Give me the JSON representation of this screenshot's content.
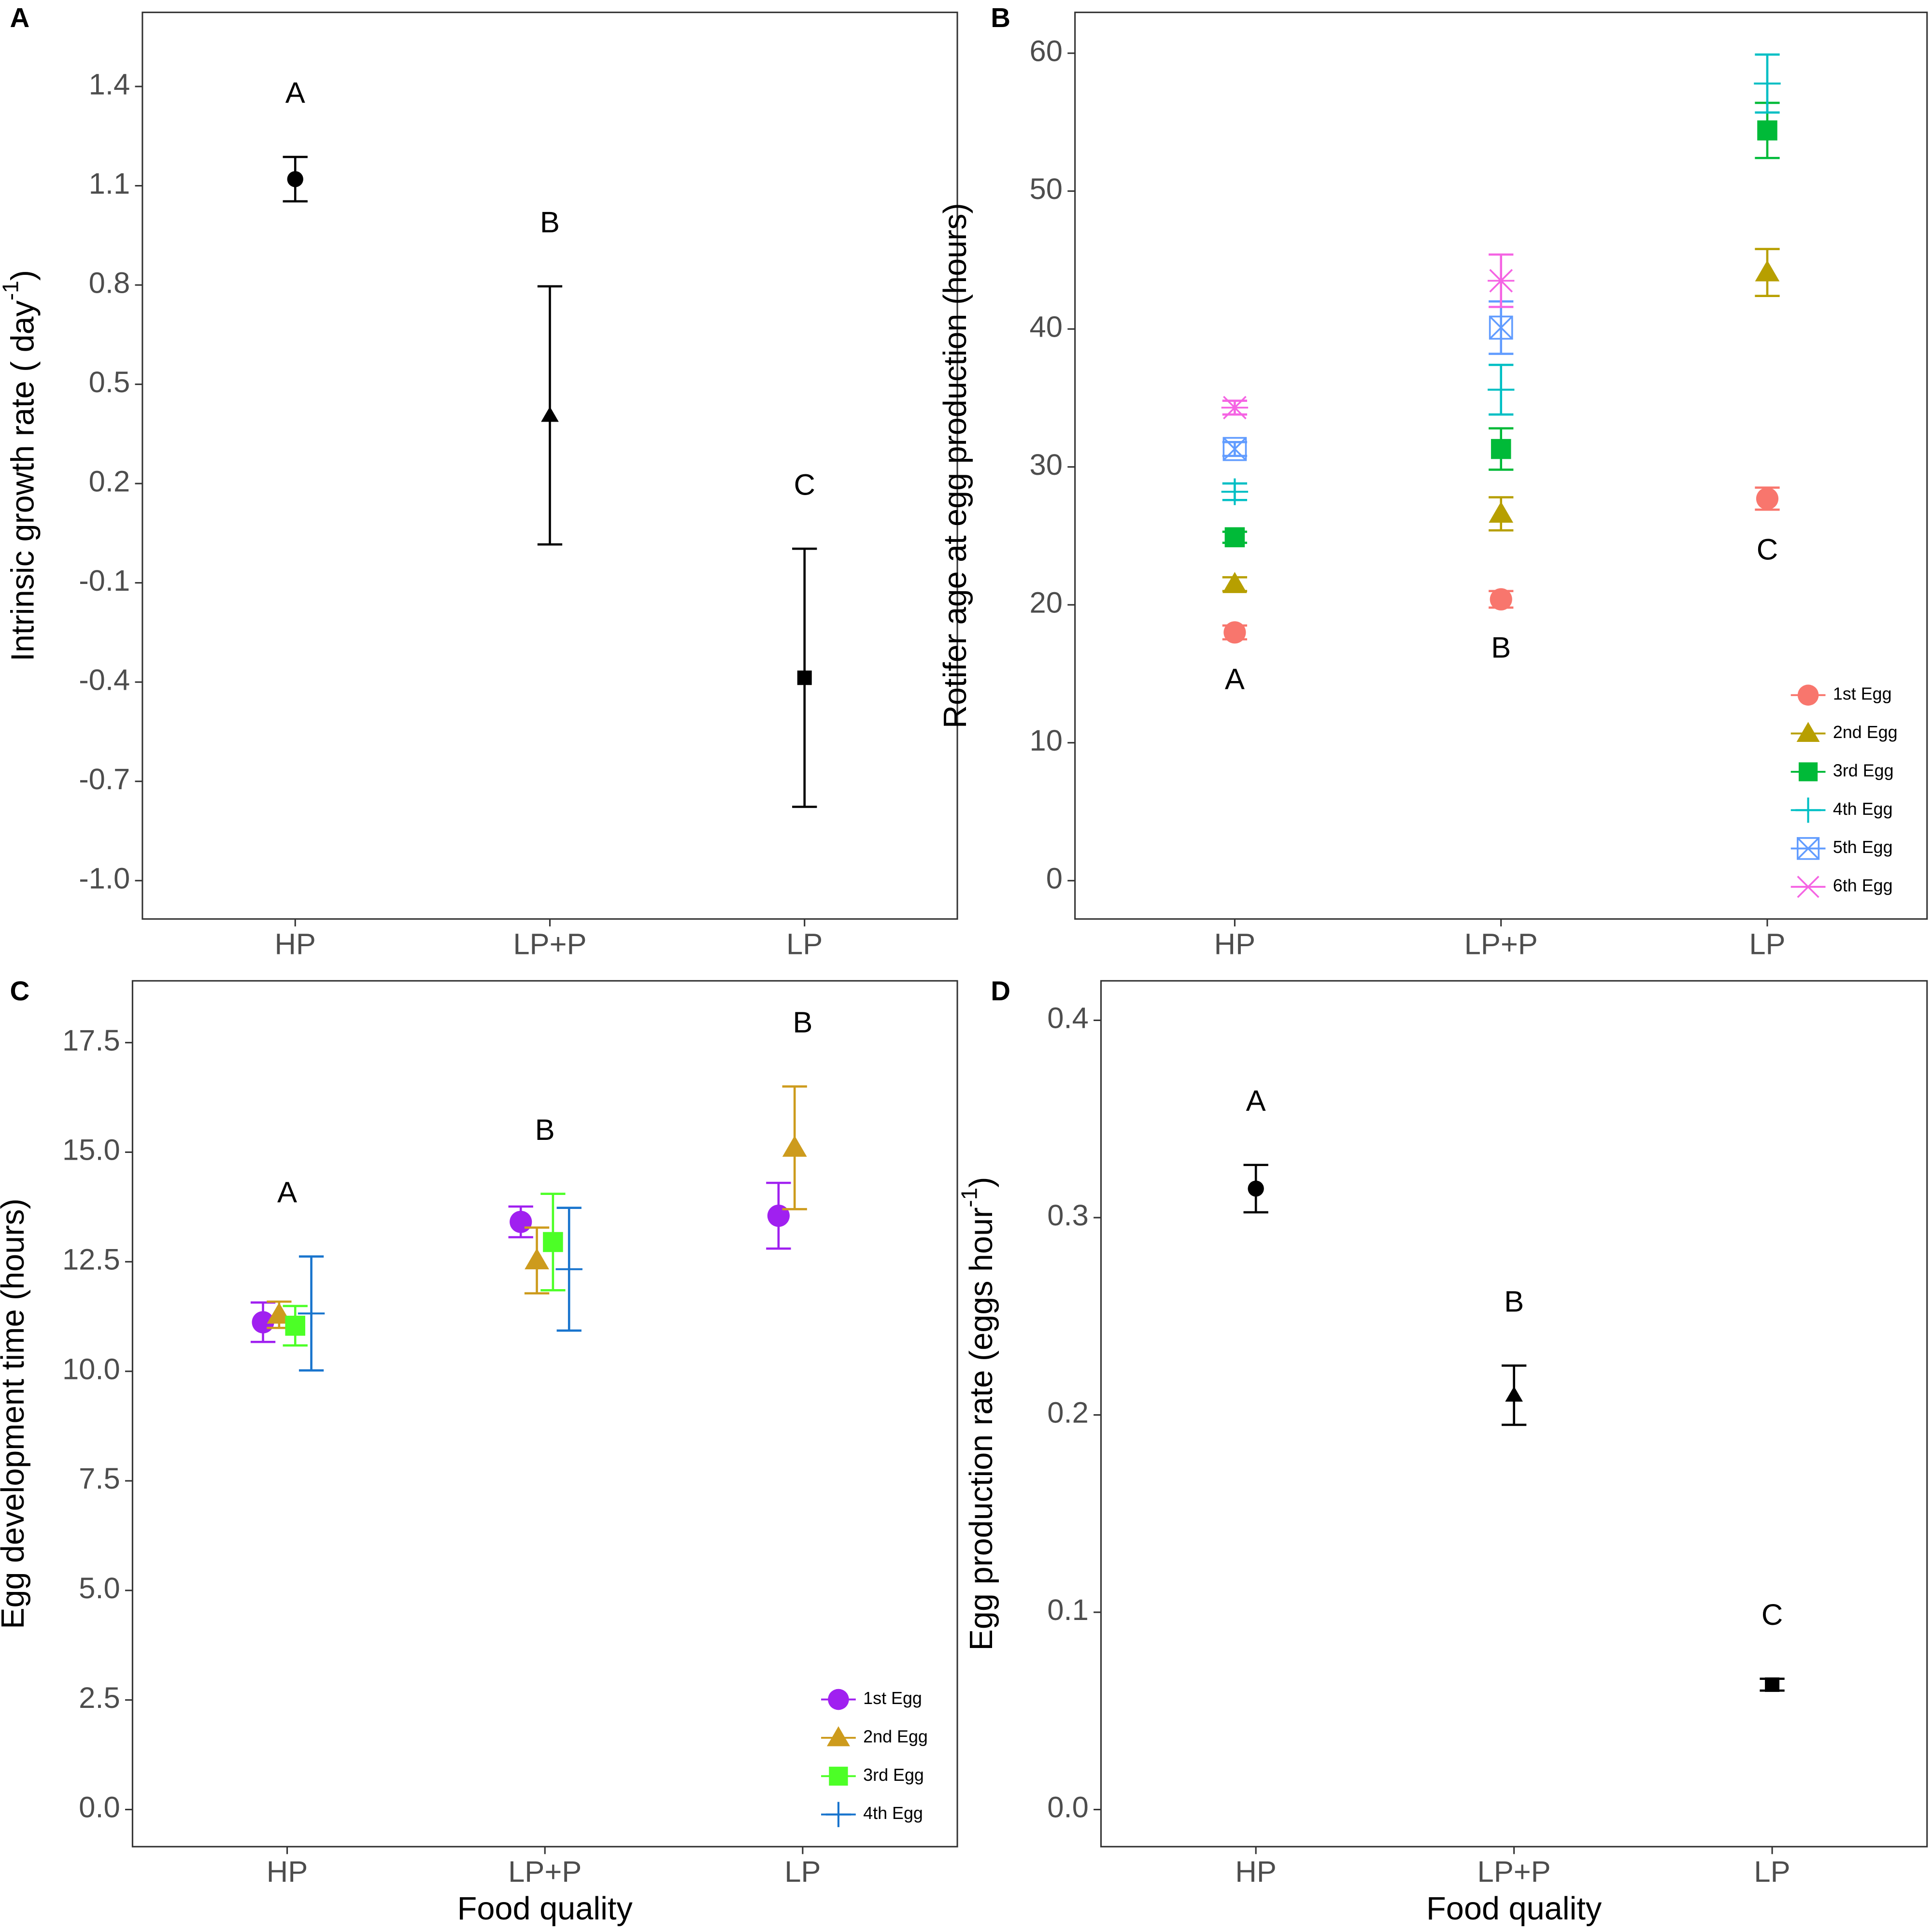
{
  "chart_data": [
    {
      "type": "errorbar",
      "panel": "A",
      "ylabel": "Intrinsic growth rate ( day",
      "ylabel_sup": "-1",
      "ylabel_end": ")",
      "categories": [
        "HP",
        "LP+P",
        "LP"
      ],
      "series": [
        {
          "color": "#000000",
          "markers": [
            "circle",
            "triangle",
            "square"
          ],
          "values": [
            1.12,
            0.406,
            -0.387
          ],
          "errors": [
            0.067,
            0.39,
            0.39
          ]
        }
      ],
      "letters": [
        "A",
        "B",
        "C"
      ],
      "letter_position": "above",
      "ylim": [
        -1.116,
        1.624
      ],
      "yticks": [
        {
          "value": -1,
          "label": "-1.0"
        },
        -0.7,
        -0.4,
        -0.1,
        0.2,
        0.5,
        0.8,
        1.1,
        1.4
      ]
    },
    {
      "type": "errorbar",
      "panel": "B",
      "ylabel": "Rotifer age at egg production (hours)",
      "categories": [
        "HP",
        "LP+P",
        "LP"
      ],
      "series": [
        {
          "name": "1st Egg",
          "color": "#F8766D",
          "marker": "circle",
          "values": [
            18.0,
            20.4,
            27.7
          ],
          "errors": [
            0.5,
            0.6,
            0.8
          ]
        },
        {
          "name": "2nd Egg",
          "color": "#B79F00",
          "marker": "triangle",
          "values": [
            21.5,
            26.6,
            44.1
          ],
          "errors": [
            0.5,
            1.2,
            1.7
          ]
        },
        {
          "name": "3rd Egg",
          "color": "#00BA38",
          "marker": "square",
          "values": [
            24.9,
            31.3,
            54.4
          ],
          "errors": [
            0.4,
            1.5,
            2.0
          ]
        },
        {
          "name": "4th Egg",
          "color": "#00BFC4",
          "marker": "plus",
          "values": [
            28.2,
            35.6,
            57.8
          ],
          "errors": [
            0.6,
            1.8,
            2.1
          ]
        },
        {
          "name": "5th Egg",
          "color": "#619CFF",
          "marker": "boxx",
          "values": [
            31.3,
            40.1,
            null
          ],
          "errors": [
            0.5,
            1.9,
            null
          ]
        },
        {
          "name": "6th Egg",
          "color": "#F564E3",
          "marker": "asterisk",
          "values": [
            34.3,
            43.5,
            null
          ],
          "errors": [
            0.5,
            1.9,
            null
          ]
        }
      ],
      "letters": [
        "A",
        "B",
        "C"
      ],
      "letter_position": "below",
      "legend": "bottom right",
      "ylim": [
        -2.78,
        62.96
      ],
      "yticks": [
        0,
        10,
        20,
        30,
        40,
        50,
        60
      ]
    },
    {
      "type": "errorbar",
      "panel": "C",
      "ylabel": "Egg development time (hours)",
      "xlabel": "Food quality",
      "categories": [
        "HP",
        "LP+P",
        "LP"
      ],
      "dodge": true,
      "series": [
        {
          "name": "1st Egg",
          "color": "#A020F0",
          "marker": "circle",
          "values": [
            11.12,
            13.41,
            13.55
          ],
          "errors": [
            0.45,
            0.35,
            0.75
          ]
        },
        {
          "name": "2nd Egg",
          "color": "#CD9B1D",
          "marker": "triangle",
          "values": [
            11.29,
            12.53,
            15.1
          ],
          "errors": [
            0.3,
            0.75,
            1.4
          ]
        },
        {
          "name": "3rd Egg",
          "color": "#4CFF26",
          "marker": "square",
          "values": [
            11.04,
            12.95,
            null
          ],
          "errors": [
            0.45,
            1.1,
            null
          ]
        },
        {
          "name": "4th Egg",
          "color": "#1874CD",
          "marker": "plus",
          "values": [
            11.32,
            12.33,
            null
          ],
          "errors": [
            1.3,
            1.4,
            null
          ]
        }
      ],
      "letters": [
        "A",
        "B",
        "B"
      ],
      "letter_position": "above",
      "legend": "bottom right",
      "ylim": [
        -0.847,
        18.91
      ],
      "yticks": [
        {
          "value": 0,
          "label": "0.0"
        },
        2.5,
        {
          "value": 5,
          "label": "5.0"
        },
        7.5,
        {
          "value": 10,
          "label": "10.0"
        },
        12.5,
        {
          "value": 15,
          "label": "15.0"
        },
        17.5
      ]
    },
    {
      "type": "errorbar",
      "panel": "D",
      "ylabel": "Egg production rate (eggs hour",
      "ylabel_sup": "-1",
      "ylabel_end": ")",
      "xlabel": "Food quality",
      "categories": [
        "HP",
        "LP+P",
        "LP"
      ],
      "series": [
        {
          "color": "#000000",
          "markers": [
            "circle",
            "triangle",
            "square"
          ],
          "values": [
            0.3147,
            0.21,
            0.0633
          ],
          "errors": [
            0.012,
            0.015,
            0.003
          ]
        }
      ],
      "letters": [
        "A",
        "B",
        "C"
      ],
      "letter_position": "above",
      "ylim": [
        -0.0188,
        0.42
      ],
      "yticks": [
        {
          "value": 0,
          "label": "0.0"
        },
        0.1,
        0.2,
        0.3,
        0.4
      ]
    }
  ]
}
